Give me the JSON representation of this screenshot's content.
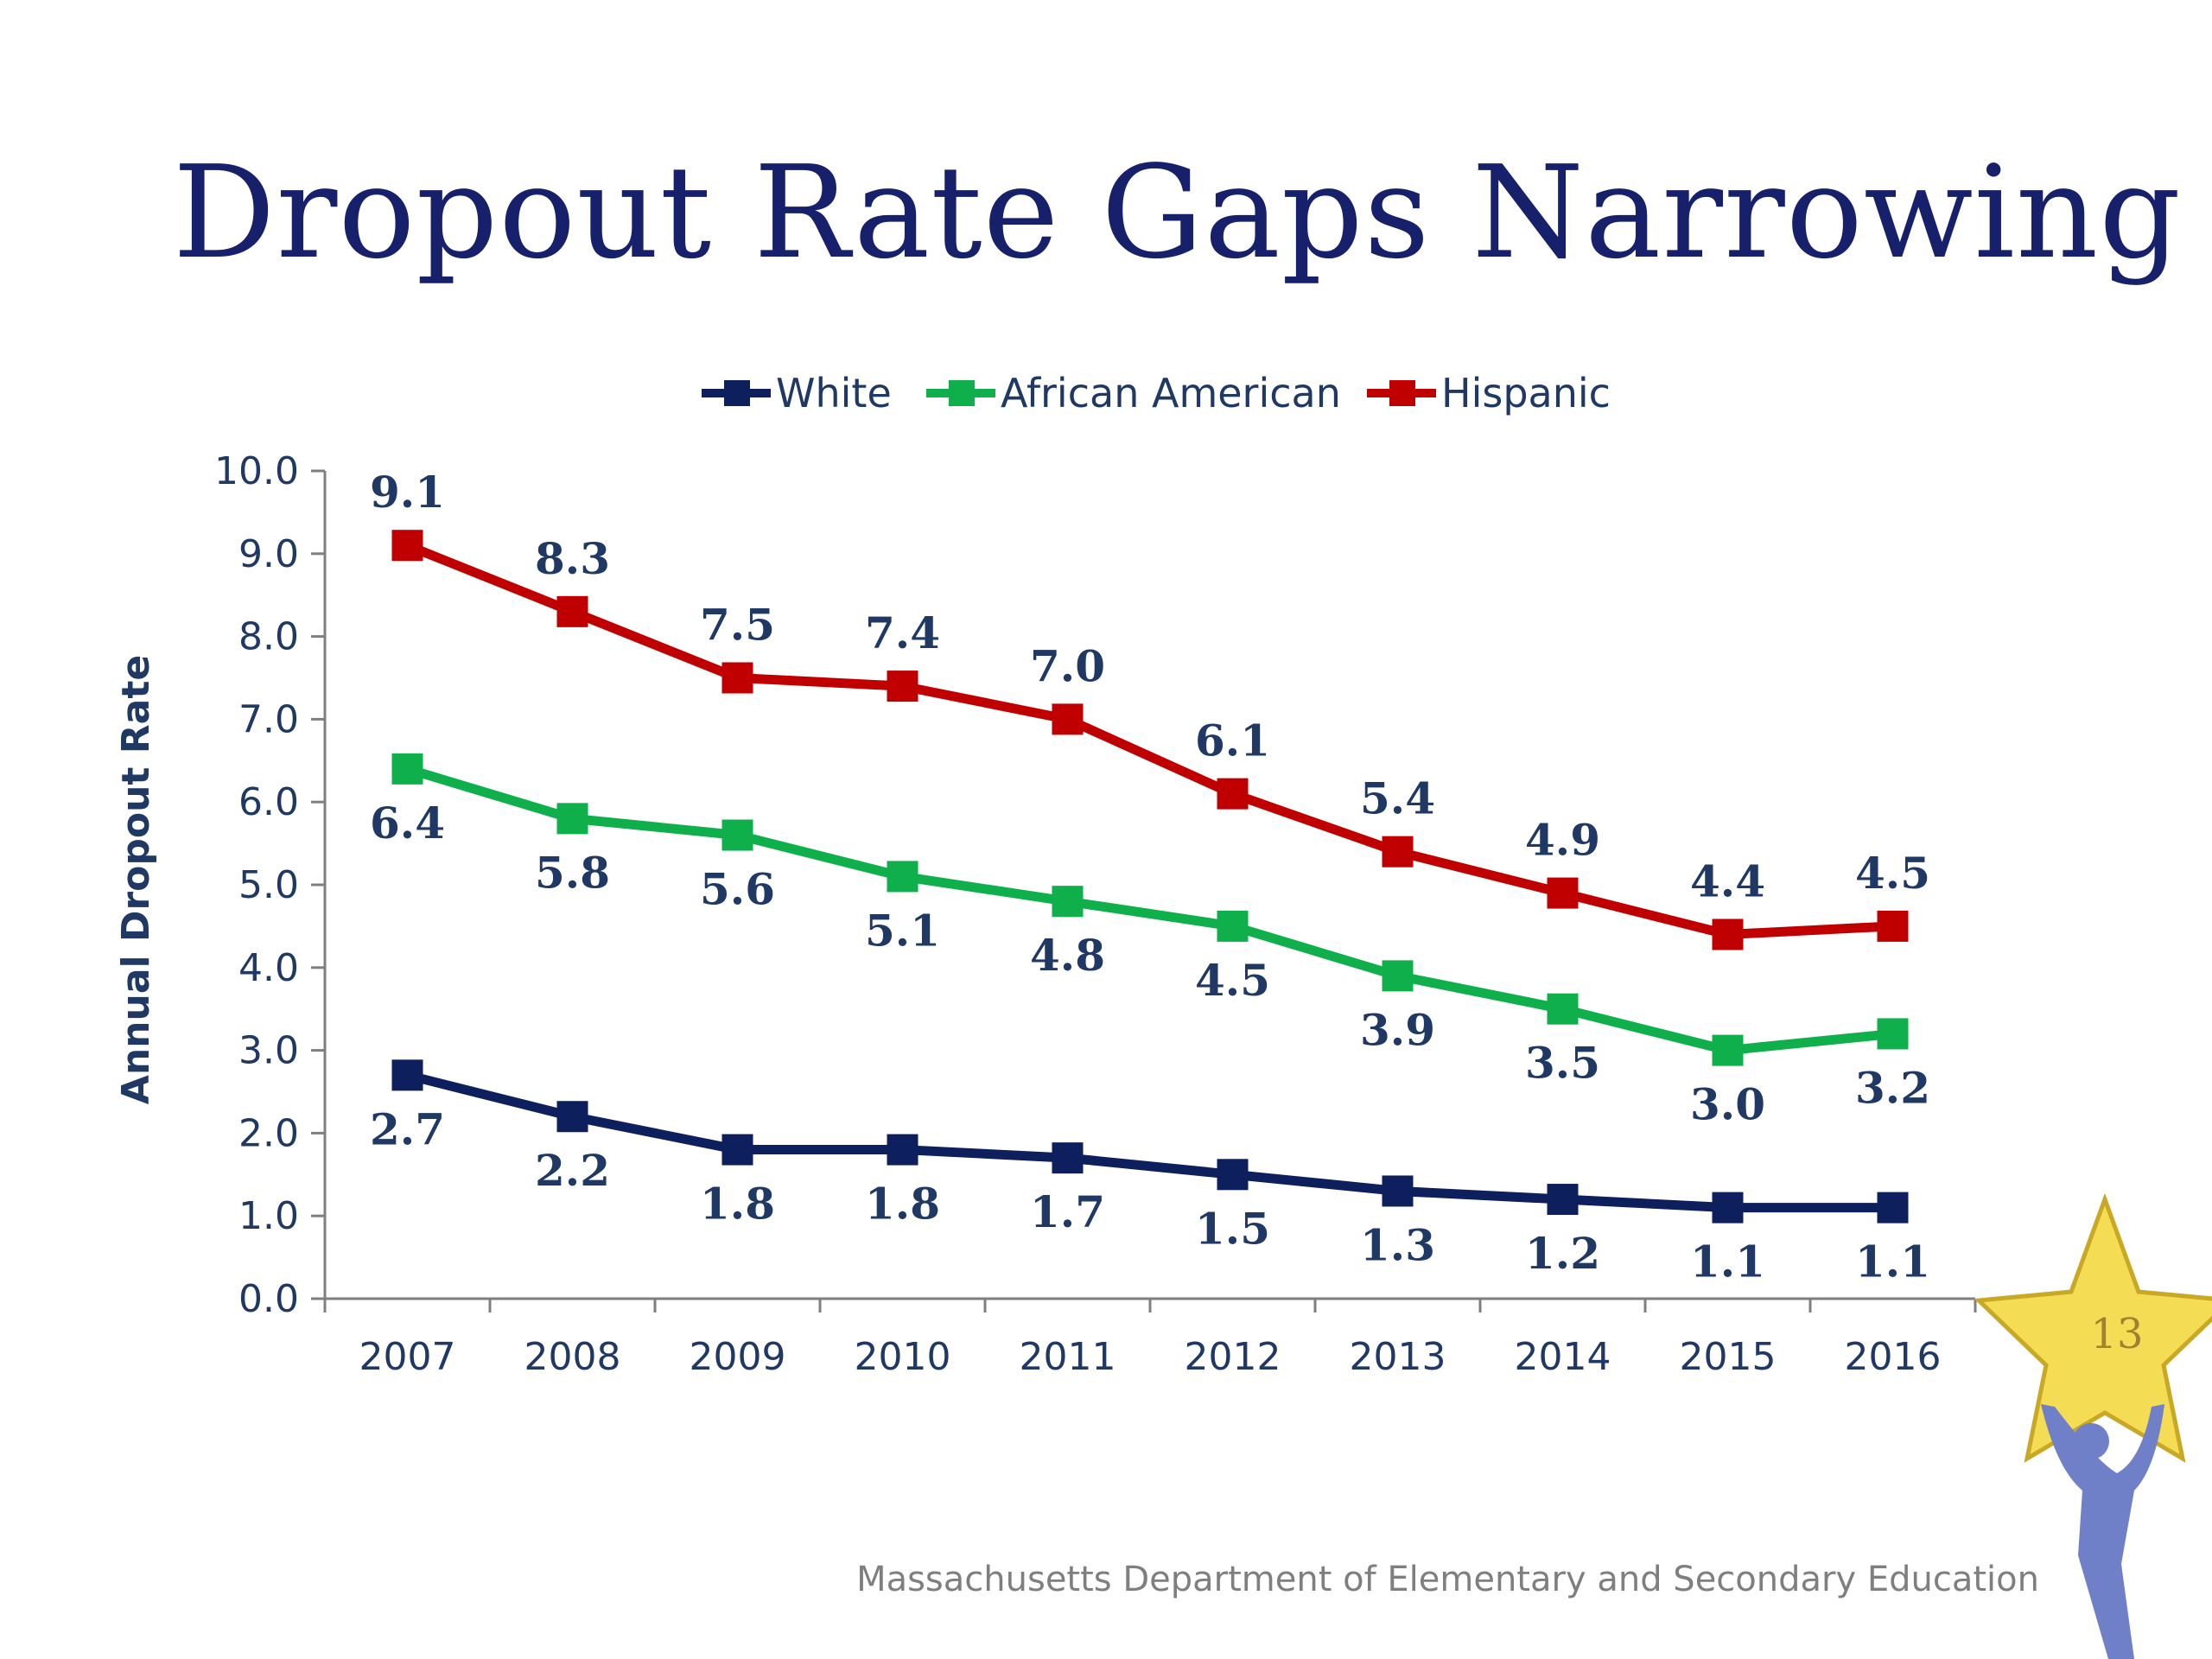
{
  "slide": {
    "title": "Dropout Rate Gaps Narrowing",
    "footer": "Massachusetts Department of Elementary and Secondary Education",
    "page_number": "13"
  },
  "colors": {
    "title": "#17206a",
    "white_series": "#0d1f5c",
    "african_american_series": "#0fb04c",
    "hispanic_series": "#c00000",
    "axis_text": "#1f3864",
    "axis_line": "#7f7f7f",
    "star": "#f5dc55",
    "figure": "#6f7fc8"
  },
  "chart_data": {
    "type": "line",
    "title": "",
    "xlabel": "",
    "ylabel": "Annual Dropout Rate",
    "categories": [
      "2007",
      "2008",
      "2009",
      "2010",
      "2011",
      "2012",
      "2013",
      "2014",
      "2015",
      "2016"
    ],
    "yticks": [
      "0.0",
      "1.0",
      "2.0",
      "3.0",
      "4.0",
      "5.0",
      "6.0",
      "7.0",
      "8.0",
      "9.0",
      "10.0"
    ],
    "ylim": [
      0,
      10
    ],
    "grid": false,
    "legend_position": "top",
    "series": [
      {
        "name": "White",
        "color": "#0d1f5c",
        "values": [
          2.7,
          2.2,
          1.8,
          1.8,
          1.7,
          1.5,
          1.3,
          1.2,
          1.1,
          1.1
        ],
        "labels": [
          "2.7",
          "2.2",
          "1.8",
          "1.8",
          "1.7",
          "1.5",
          "1.3",
          "1.2",
          "1.1",
          "1.1"
        ],
        "label_side": "below"
      },
      {
        "name": "African American",
        "color": "#0fb04c",
        "values": [
          6.4,
          5.8,
          5.6,
          5.1,
          4.8,
          4.5,
          3.9,
          3.5,
          3.0,
          3.2
        ],
        "labels": [
          "6.4",
          "5.8",
          "5.6",
          "5.1",
          "4.8",
          "4.5",
          "3.9",
          "3.5",
          "3.0",
          "3.2"
        ],
        "label_side": "below"
      },
      {
        "name": "Hispanic",
        "color": "#c00000",
        "values": [
          9.1,
          8.3,
          7.5,
          7.4,
          7.0,
          6.1,
          5.4,
          4.9,
          4.4,
          4.5
        ],
        "labels": [
          "9.1",
          "8.3",
          "7.5",
          "7.4",
          "7.0",
          "6.1",
          "5.4",
          "4.9",
          "4.4",
          "4.5"
        ],
        "label_side": "above"
      }
    ]
  }
}
